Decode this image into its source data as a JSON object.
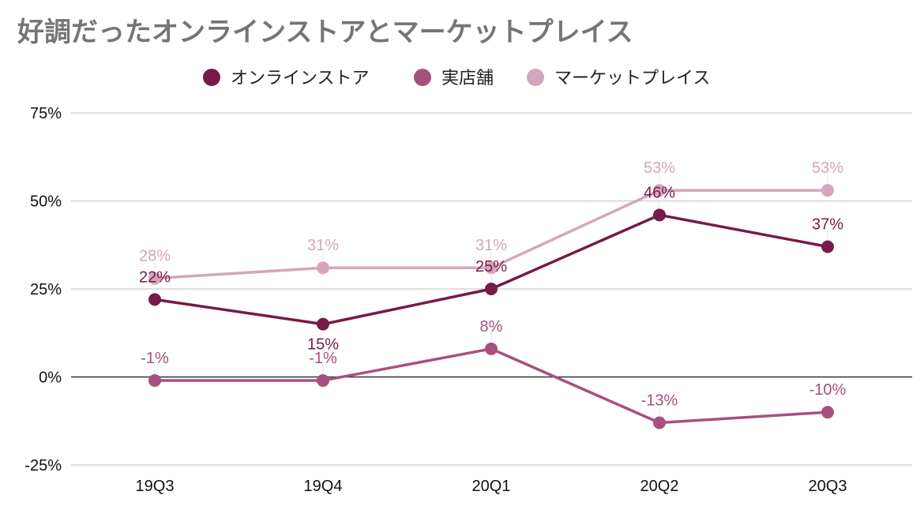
{
  "chart_data": {
    "type": "line",
    "title": "好調だったオンラインストアとマーケットプレイス",
    "categories": [
      "19Q3",
      "19Q4",
      "20Q1",
      "20Q2",
      "20Q3"
    ],
    "y_ticks": [
      "75%",
      "50%",
      "25%",
      "0%",
      "-25%"
    ],
    "ylim": [
      -25,
      75
    ],
    "y_unit": "%",
    "grid": true,
    "legend_position": "top",
    "series": [
      {
        "name": "オンラインストア",
        "color": "#761b47",
        "values": [
          22,
          15,
          25,
          46,
          37
        ],
        "labels": [
          "22%",
          "15%",
          "25%",
          "46%",
          "37%"
        ],
        "label_side": [
          "above",
          "below",
          "above",
          "above",
          "above"
        ]
      },
      {
        "name": "実店舗",
        "color": "#a8507d",
        "values": [
          -1,
          -1,
          8,
          -13,
          -10
        ],
        "labels": [
          "-1%",
          "-1%",
          "8%",
          "-13%",
          "-10%"
        ],
        "label_side": [
          "above",
          "above",
          "above",
          "above",
          "above"
        ]
      },
      {
        "name": "マーケットプレイス",
        "color": "#d4a6bc",
        "values": [
          28,
          31,
          31,
          53,
          53
        ],
        "labels": [
          "28%",
          "31%",
          "31%",
          "53%",
          "53%"
        ],
        "label_side": [
          "above",
          "above",
          "above",
          "above",
          "above"
        ]
      }
    ]
  }
}
